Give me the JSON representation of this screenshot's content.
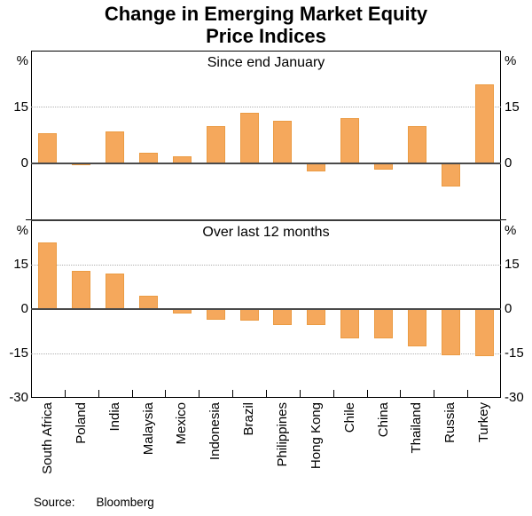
{
  "header": {
    "title_line1": "Change in Emerging Market Equity",
    "title_line2": "Price Indices"
  },
  "source": {
    "label": "Source:",
    "value": "Bloomberg"
  },
  "chart_data": {
    "type": "bar",
    "title": "Change in Emerging Market Equity Price Indices",
    "xlabel": "",
    "ylabel": "%",
    "unit": "%",
    "grid": "horizontal-dotted",
    "legend_position": "none",
    "bar_color": "#F5A85C",
    "bar_border_color": "#EB9B43",
    "categories": [
      "South Africa",
      "Poland",
      "India",
      "Malaysia",
      "Mexico",
      "Indonesia",
      "Brazil",
      "Philippines",
      "Hong Kong",
      "Chile",
      "China",
      "Thailand",
      "Russia",
      "Turkey"
    ],
    "panels": [
      {
        "label": "Since end January",
        "ylim": [
          -15,
          30
        ],
        "ytick_labels": [
          15,
          0
        ],
        "gridlines": [
          15
        ],
        "values": [
          8,
          -0.5,
          8.5,
          3,
          2,
          10,
          13.5,
          11.5,
          -2,
          12,
          -1.5,
          10,
          -6,
          21
        ]
      },
      {
        "label": "Over last 12 months",
        "ylim": [
          -30,
          30
        ],
        "ytick_labels": [
          15,
          0,
          -15,
          -30
        ],
        "gridlines": [
          15,
          -15
        ],
        "values": [
          22.5,
          13,
          12,
          4.5,
          -1.5,
          -3.5,
          -4,
          -5.5,
          -5.5,
          -10,
          -10,
          -12.5,
          -15.5,
          -16
        ]
      }
    ]
  }
}
